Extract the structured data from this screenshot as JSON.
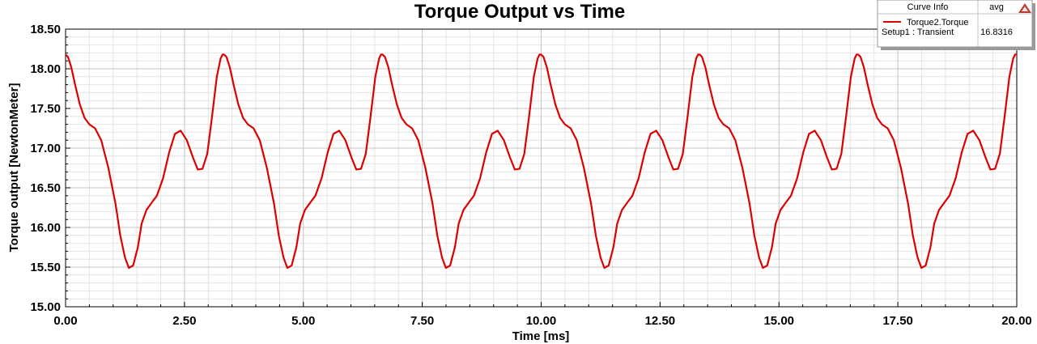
{
  "chart_data": {
    "type": "line",
    "title": "Torque Output vs Time",
    "xlabel": "Time [ms]",
    "ylabel": "Torque output [NewtonMeter]",
    "xlim": [
      0,
      20
    ],
    "ylim": [
      15,
      18.5
    ],
    "x_ticks": [
      "0.00",
      "2.50",
      "5.00",
      "7.50",
      "10.00",
      "12.50",
      "15.00",
      "17.50",
      "20.00"
    ],
    "y_ticks": [
      "15.00",
      "15.50",
      "16.00",
      "16.50",
      "17.00",
      "17.50",
      "18.00",
      "18.50"
    ],
    "grid": true,
    "legend": {
      "header_name": "Curve Info",
      "header_stat": "avg",
      "placement": "top-right"
    },
    "series": [
      {
        "name": "Torque2.Torque",
        "subtitle": "Setup1 : Transient",
        "avg": "16.8316",
        "color": "#dd0000",
        "period": 3.333,
        "pattern": [
          [
            0.0,
            18.18
          ],
          [
            0.05,
            18.15
          ],
          [
            0.12,
            18.02
          ],
          [
            0.2,
            17.8
          ],
          [
            0.3,
            17.55
          ],
          [
            0.4,
            17.38
          ],
          [
            0.5,
            17.3
          ],
          [
            0.62,
            17.25
          ],
          [
            0.75,
            17.1
          ],
          [
            0.9,
            16.75
          ],
          [
            1.05,
            16.3
          ],
          [
            1.15,
            15.9
          ],
          [
            1.25,
            15.62
          ],
          [
            1.33,
            15.49
          ],
          [
            1.42,
            15.52
          ],
          [
            1.52,
            15.75
          ],
          [
            1.6,
            16.05
          ],
          [
            1.7,
            16.22
          ],
          [
            1.82,
            16.32
          ],
          [
            1.92,
            16.4
          ],
          [
            2.05,
            16.62
          ],
          [
            2.18,
            16.95
          ],
          [
            2.3,
            17.18
          ],
          [
            2.42,
            17.22
          ],
          [
            2.55,
            17.1
          ],
          [
            2.68,
            16.88
          ],
          [
            2.78,
            16.73
          ],
          [
            2.88,
            16.74
          ],
          [
            2.98,
            16.93
          ],
          [
            3.08,
            17.4
          ],
          [
            3.18,
            17.9
          ],
          [
            3.26,
            18.13
          ],
          [
            3.3,
            18.18
          ],
          [
            3.333,
            18.18
          ]
        ]
      }
    ]
  }
}
